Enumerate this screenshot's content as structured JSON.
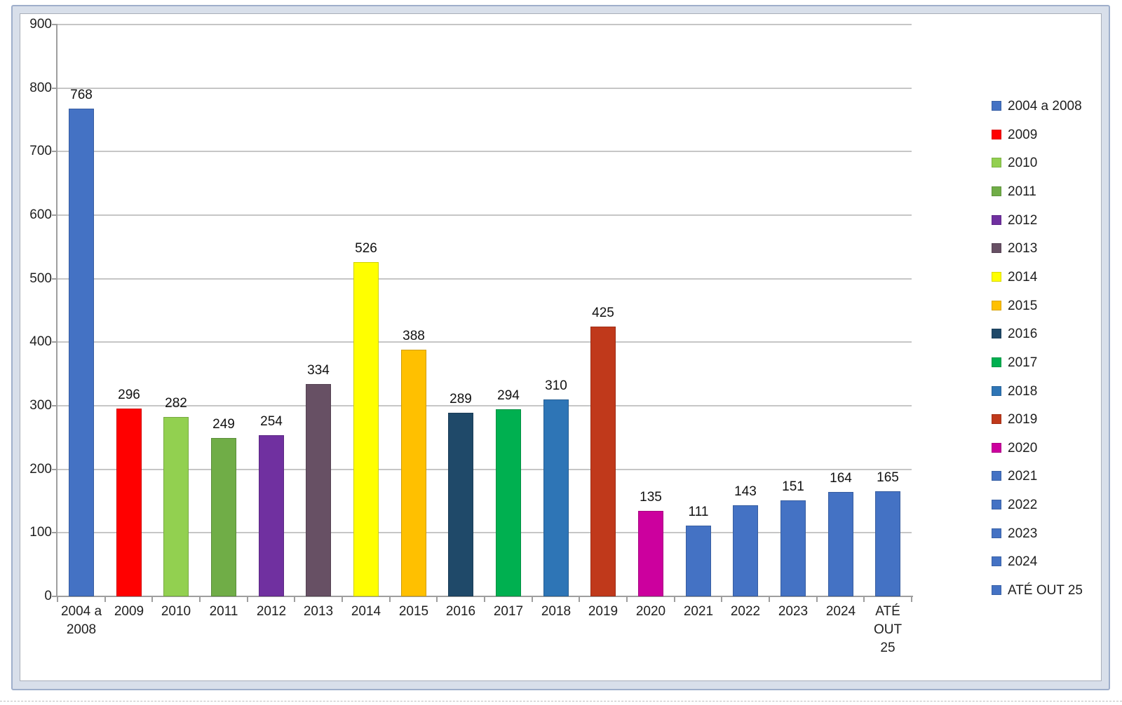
{
  "chart_data": {
    "type": "bar",
    "title": "",
    "categories": [
      "2004 a 2008",
      "2009",
      "2010",
      "2011",
      "2012",
      "2013",
      "2014",
      "2015",
      "2016",
      "2017",
      "2018",
      "2019",
      "2020",
      "2021",
      "2022",
      "2023",
      "2024",
      "ATÉ OUT 25"
    ],
    "values": [
      768,
      296,
      282,
      249,
      254,
      334,
      526,
      388,
      289,
      294,
      310,
      425,
      135,
      111,
      143,
      151,
      164,
      165
    ],
    "data_labels": [
      "768",
      "296",
      "282",
      "249",
      "254",
      "334",
      "526",
      "388",
      "289",
      "294",
      "310",
      "425",
      "135",
      "111",
      "143",
      "151",
      "164",
      "165"
    ],
    "point_colors": [
      "#4472C4",
      "#FF0000",
      "#92D050",
      "#70AD47",
      "#7030A0",
      "#675064",
      "#FFFF00",
      "#FFC000",
      "#1F4969",
      "#00B050",
      "#2E75B6",
      "#C0391B",
      "#CC009E",
      "#4472C4",
      "#4472C4",
      "#4472C4",
      "#4472C4",
      "#4472C4"
    ],
    "legend": [
      {
        "label": "2004 a 2008",
        "color": "#4472C4"
      },
      {
        "label": "2009",
        "color": "#FF0000"
      },
      {
        "label": "2010",
        "color": "#92D050"
      },
      {
        "label": "2011",
        "color": "#70AD47"
      },
      {
        "label": "2012",
        "color": "#7030A0"
      },
      {
        "label": "2013",
        "color": "#675064"
      },
      {
        "label": "2014",
        "color": "#FFFF00"
      },
      {
        "label": "2015",
        "color": "#FFC000"
      },
      {
        "label": "2016",
        "color": "#1F4969"
      },
      {
        "label": "2017",
        "color": "#00B050"
      },
      {
        "label": "2018",
        "color": "#2E75B6"
      },
      {
        "label": "2019",
        "color": "#C0391B"
      },
      {
        "label": "2020",
        "color": "#CC009E"
      },
      {
        "label": "2021",
        "color": "#4472C4"
      },
      {
        "label": "2022",
        "color": "#4472C4"
      },
      {
        "label": "2023",
        "color": "#4472C4"
      },
      {
        "label": "2024",
        "color": "#4472C4"
      },
      {
        "label": "ATÉ OUT 25",
        "color": "#4472C4"
      }
    ],
    "ylim": [
      0,
      900
    ],
    "ytick_step": 100,
    "yticks": [
      "0",
      "100",
      "200",
      "300",
      "400",
      "500",
      "600",
      "700",
      "800",
      "900"
    ],
    "grid": "horizontal",
    "legend_position": "right",
    "xtick_wrap": {
      "0": [
        "2004 a",
        "2008"
      ],
      "17": [
        "ATÉ",
        "OUT",
        "25"
      ]
    }
  },
  "colors": {
    "frame_band": "#D8DFEA",
    "frame_border": "#9FAFCB",
    "inner_border": "#A8AEB9",
    "gridline": "#C6C6C6",
    "axis": "#9E9E9E",
    "text": "#1F1F1F"
  }
}
